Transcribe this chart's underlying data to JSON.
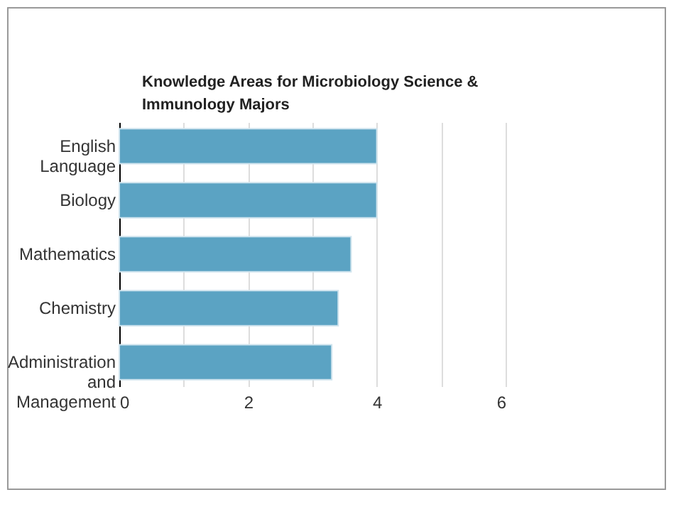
{
  "chart_data": {
    "type": "bar",
    "orientation": "horizontal",
    "title": "Knowledge Areas for Microbiology Science & Immunology Majors",
    "categories": [
      "English Language",
      "Biology",
      "Mathematics",
      "Chemistry",
      "Administration and Management"
    ],
    "values": [
      4.0,
      4.0,
      3.6,
      3.4,
      3.3
    ],
    "color": "#5ba3c3",
    "xlim": [
      0,
      6
    ],
    "xticks": [
      0,
      {
        "value": 1,
        "label": null
      },
      2,
      {
        "value": 3,
        "label": null
      },
      4,
      {
        "value": 5,
        "label": null
      },
      6
    ],
    "grid": "x"
  }
}
